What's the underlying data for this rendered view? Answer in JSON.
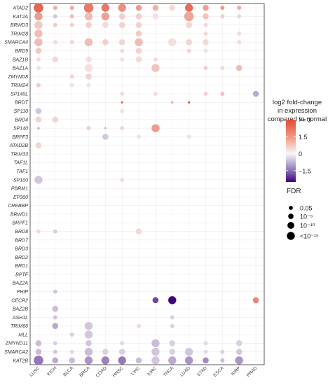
{
  "chart_data": {
    "type": "scatter",
    "subtype": "dot-matrix",
    "cancers": [
      "LUSC",
      "KICH",
      "BLCA",
      "BRCA",
      "COAD",
      "HNSC",
      "LIHC",
      "KIRC",
      "THCA",
      "LUAD",
      "STAD",
      "ESCA",
      "KIRP",
      "PRAD"
    ],
    "genes": [
      "ATAD2",
      "KAT2A",
      "BRWD3",
      "TRIM28",
      "SMARCA4",
      "BRD9",
      "BAZ1B",
      "BAZ1A",
      "ZMYND8",
      "TRIM24",
      "SP140L",
      "BRDT",
      "SP110",
      "BRD4",
      "SP140",
      "BRPF3",
      "ATAD2B",
      "TRIM33",
      "TAF1L",
      "TAF1",
      "SP100",
      "PBRM1",
      "EP300",
      "CREBBP",
      "BRWD1",
      "BRPF1",
      "BRD8",
      "BRD7",
      "BRD3",
      "BRD2",
      "BRD1",
      "BPTF",
      "BAZ2A",
      "PHIP",
      "CECR2",
      "BAZ2B",
      "ASH1L",
      "TRIM66",
      "MLL",
      "ZMYND11",
      "SMARCA2",
      "KAT2B"
    ],
    "points": [
      [
        "ATAD2",
        "LUSC",
        2.5,
        4
      ],
      [
        "ATAD2",
        "KICH",
        1.2,
        1
      ],
      [
        "ATAD2",
        "BLCA",
        1.3,
        1
      ],
      [
        "ATAD2",
        "BRCA",
        2.2,
        4
      ],
      [
        "ATAD2",
        "COAD",
        2.2,
        3
      ],
      [
        "ATAD2",
        "HNSC",
        1.8,
        3
      ],
      [
        "ATAD2",
        "LIHC",
        1.6,
        2
      ],
      [
        "ATAD2",
        "KIRC",
        1.2,
        2
      ],
      [
        "ATAD2",
        "THCA",
        0.5,
        2
      ],
      [
        "ATAD2",
        "LUAD",
        2.4,
        3
      ],
      [
        "ATAD2",
        "STAD",
        1.5,
        2
      ],
      [
        "ATAD2",
        "ESCA",
        1.6,
        1
      ],
      [
        "ATAD2",
        "KIRP",
        1.3,
        1
      ],
      [
        "KAT2A",
        "LUSC",
        1.6,
        3
      ],
      [
        "KAT2A",
        "KICH",
        -0.5,
        1
      ],
      [
        "KAT2A",
        "BLCA",
        1.0,
        1
      ],
      [
        "KAT2A",
        "BRCA",
        1.0,
        3
      ],
      [
        "KAT2A",
        "COAD",
        1.5,
        3
      ],
      [
        "KAT2A",
        "HNSC",
        0.7,
        2
      ],
      [
        "KAT2A",
        "LIHC",
        0.7,
        2
      ],
      [
        "KAT2A",
        "KIRC",
        0.4,
        2
      ],
      [
        "KAT2A",
        "LUAD",
        1.4,
        4
      ],
      [
        "KAT2A",
        "STAD",
        0.9,
        2
      ],
      [
        "KAT2A",
        "ESCA",
        0.7,
        1
      ],
      [
        "KAT2A",
        "KIRP",
        0.6,
        1
      ],
      [
        "BRWD3",
        "LUSC",
        0.8,
        3
      ],
      [
        "BRWD3",
        "KICH",
        0.8,
        1
      ],
      [
        "BRWD3",
        "BLCA",
        0.7,
        1
      ],
      [
        "BRWD3",
        "BRCA",
        0.7,
        2
      ],
      [
        "BRWD3",
        "COAD",
        0.5,
        2
      ],
      [
        "BRWD3",
        "HNSC",
        0.6,
        2
      ],
      [
        "BRWD3",
        "LIHC",
        0.6,
        2
      ],
      [
        "BRWD3",
        "LUAD",
        0.6,
        2
      ],
      [
        "BRWD3",
        "STAD",
        0.5,
        1
      ],
      [
        "TRIM28",
        "LUSC",
        1.0,
        3
      ],
      [
        "TRIM28",
        "LIHC",
        0.8,
        2
      ],
      [
        "TRIM28",
        "STAD",
        0.5,
        1
      ],
      [
        "TRIM28",
        "KIRP",
        0.5,
        1
      ],
      [
        "SMARCA4",
        "LUSC",
        1.0,
        3
      ],
      [
        "SMARCA4",
        "KICH",
        0.5,
        1
      ],
      [
        "SMARCA4",
        "BLCA",
        0.6,
        1
      ],
      [
        "SMARCA4",
        "BRCA",
        1.0,
        3
      ],
      [
        "SMARCA4",
        "COAD",
        0.7,
        2
      ],
      [
        "SMARCA4",
        "HNSC",
        0.6,
        2
      ],
      [
        "SMARCA4",
        "LIHC",
        1.0,
        3
      ],
      [
        "SMARCA4",
        "THCA",
        0.4,
        3
      ],
      [
        "SMARCA4",
        "LUAD",
        0.6,
        2
      ],
      [
        "SMARCA4",
        "STAD",
        0.5,
        2
      ],
      [
        "SMARCA4",
        "KIRP",
        0.5,
        1
      ],
      [
        "BRD9",
        "LUSC",
        0.8,
        2
      ],
      [
        "BRD9",
        "HNSC",
        0.5,
        1
      ],
      [
        "BRD9",
        "LIHC",
        0.6,
        2
      ],
      [
        "BRD9",
        "LUAD",
        0.6,
        1
      ],
      [
        "BRD9",
        "STAD",
        0.4,
        1
      ],
      [
        "BAZ1B",
        "LUSC",
        0.5,
        1
      ],
      [
        "BAZ1B",
        "KICH",
        0.5,
        2
      ],
      [
        "BAZ1B",
        "BRCA",
        0.4,
        2
      ],
      [
        "BAZ1B",
        "HNSC",
        0.4,
        1
      ],
      [
        "BAZ1B",
        "LIHC",
        0.5,
        2
      ],
      [
        "BAZ1B",
        "KIRC",
        0.5,
        1
      ],
      [
        "BAZ1A",
        "LUSC",
        0.4,
        1
      ],
      [
        "BAZ1A",
        "BRCA",
        0.4,
        3
      ],
      [
        "BAZ1A",
        "KIRC",
        0.9,
        3
      ],
      [
        "BAZ1A",
        "STAD",
        0.7,
        1
      ],
      [
        "BAZ1A",
        "ESCA",
        0.5,
        1
      ],
      [
        "BAZ1A",
        "KIRP",
        1.0,
        2
      ],
      [
        "ZMYND8",
        "BLCA",
        0.6,
        1
      ],
      [
        "ZMYND8",
        "BRCA",
        0.6,
        2
      ],
      [
        "TRIM24",
        "LUSC",
        0.8,
        1
      ],
      [
        "TRIM24",
        "BLCA",
        0.4,
        1
      ],
      [
        "TRIM24",
        "BRCA",
        0.4,
        1
      ],
      [
        "SP140L",
        "HNSC",
        0.5,
        1
      ],
      [
        "SP140L",
        "KIRC",
        0.5,
        1
      ],
      [
        "SP140L",
        "STAD",
        0.6,
        1
      ],
      [
        "SP140L",
        "ESCA",
        0.9,
        1
      ],
      [
        "SP140L",
        "PRAD",
        -0.8,
        2
      ],
      [
        "BRDT",
        "HNSC",
        2.5,
        0
      ],
      [
        "BRDT",
        "THCA",
        1.5,
        0
      ],
      [
        "BRDT",
        "LUAD",
        2.8,
        0
      ],
      [
        "SP110",
        "LUSC",
        -0.5,
        2
      ],
      [
        "SP110",
        "HNSC",
        0.4,
        1
      ],
      [
        "BRD4",
        "LUSC",
        0.6,
        2
      ],
      [
        "BRD4",
        "KICH",
        0.6,
        2
      ],
      [
        "SP140",
        "LUSC",
        -0.8,
        0
      ],
      [
        "SP140",
        "BRCA",
        0.7,
        1
      ],
      [
        "SP140",
        "COAD",
        -0.6,
        0
      ],
      [
        "SP140",
        "HNSC",
        0.6,
        1
      ],
      [
        "SP140",
        "KIRC",
        1.6,
        3
      ],
      [
        "BRPF3",
        "COAD",
        -0.5,
        2
      ],
      [
        "BRPF3",
        "LIHC",
        0.4,
        1
      ],
      [
        "BRPF3",
        "LUAD",
        0.4,
        1
      ],
      [
        "ATAD2B",
        "LUSC",
        0.6,
        2
      ],
      [
        "SP100",
        "LUSC",
        -0.5,
        3
      ],
      [
        "SP100",
        "HNSC",
        0.5,
        1
      ],
      [
        "BRD8",
        "LUSC",
        0.5,
        1
      ],
      [
        "BRD8",
        "KICH",
        -0.4,
        1
      ],
      [
        "BRD8",
        "LIHC",
        0.5,
        2
      ],
      [
        "PHIP",
        "KICH",
        -0.5,
        1
      ],
      [
        "CECR2",
        "KIRC",
        -1.8,
        2
      ],
      [
        "CECR2",
        "THCA",
        -2.5,
        3
      ],
      [
        "CECR2",
        "PRAD",
        2.0,
        2
      ],
      [
        "BAZ2B",
        "KICH",
        -0.6,
        2
      ],
      [
        "ASH1L",
        "KICH",
        -0.5,
        1
      ],
      [
        "ASH1L",
        "THCA",
        -0.4,
        1
      ],
      [
        "TRIM66",
        "KICH",
        -0.8,
        2
      ],
      [
        "TRIM66",
        "BRCA",
        -0.5,
        3
      ],
      [
        "TRIM66",
        "LIHC",
        0.5,
        1
      ],
      [
        "TRIM66",
        "THCA",
        -0.4,
        1
      ],
      [
        "MLL",
        "BLCA",
        -0.4,
        1
      ],
      [
        "MLL",
        "BRCA",
        -0.5,
        3
      ],
      [
        "ZMYND11",
        "LUSC",
        -0.6,
        2
      ],
      [
        "ZMYND11",
        "KICH",
        -0.4,
        1
      ],
      [
        "ZMYND11",
        "BRCA",
        -0.5,
        2
      ],
      [
        "ZMYND11",
        "HNSC",
        -0.3,
        1
      ],
      [
        "ZMYND11",
        "KIRC",
        -0.6,
        3
      ],
      [
        "ZMYND11",
        "THCA",
        -0.4,
        2
      ],
      [
        "ZMYND11",
        "STAD",
        -0.3,
        1
      ],
      [
        "ZMYND11",
        "KIRP",
        -0.4,
        2
      ],
      [
        "SMARCA2",
        "LUSC",
        -0.6,
        2
      ],
      [
        "SMARCA2",
        "KICH",
        -0.5,
        1
      ],
      [
        "SMARCA2",
        "BLCA",
        -0.3,
        1
      ],
      [
        "SMARCA2",
        "BRCA",
        -0.6,
        3
      ],
      [
        "SMARCA2",
        "COAD",
        -0.4,
        2
      ],
      [
        "SMARCA2",
        "HNSC",
        -0.4,
        2
      ],
      [
        "SMARCA2",
        "KIRC",
        -0.5,
        3
      ],
      [
        "SMARCA2",
        "THCA",
        -0.4,
        2
      ],
      [
        "SMARCA2",
        "LUAD",
        -0.5,
        3
      ],
      [
        "SMARCA2",
        "STAD",
        -0.3,
        1
      ],
      [
        "SMARCA2",
        "ESCA",
        -0.4,
        1
      ],
      [
        "SMARCA2",
        "KIRP",
        -0.5,
        2
      ],
      [
        "KAT2B",
        "LUSC",
        -1.3,
        4
      ],
      [
        "KAT2B",
        "KICH",
        -0.8,
        2
      ],
      [
        "KAT2B",
        "BLCA",
        -0.6,
        2
      ],
      [
        "KAT2B",
        "BRCA",
        -1.0,
        3
      ],
      [
        "KAT2B",
        "COAD",
        -1.2,
        3
      ],
      [
        "KAT2B",
        "HNSC",
        -1.3,
        3
      ],
      [
        "KAT2B",
        "LIHC",
        -0.6,
        2
      ],
      [
        "KAT2B",
        "KIRC",
        -0.5,
        3
      ],
      [
        "KAT2B",
        "THCA",
        -0.8,
        3
      ],
      [
        "KAT2B",
        "LUAD",
        -1.0,
        3
      ],
      [
        "KAT2B",
        "STAD",
        -1.1,
        2
      ],
      [
        "KAT2B",
        "ESCA",
        -0.6,
        1
      ],
      [
        "KAT2B",
        "KIRP",
        -1.0,
        3
      ]
    ],
    "color_legend": {
      "title": [
        "log2 fold-change",
        "in expression",
        "compared to normal"
      ],
      "range": [
        -2.5,
        3
      ],
      "tick_values": [
        3,
        1.5,
        0,
        -1.5
      ],
      "tick_labels": [
        ">= 3",
        "1.5",
        "0",
        "−1.5"
      ],
      "colors": {
        "high": "#e34a33",
        "mid": "#f7f7f7",
        "low": "#3f007d"
      }
    },
    "size_legend": {
      "title": "FDR",
      "labels": [
        "0.05",
        "10⁻⁵",
        "10⁻¹⁰",
        "<10⁻¹⁵"
      ]
    },
    "grid": true
  }
}
